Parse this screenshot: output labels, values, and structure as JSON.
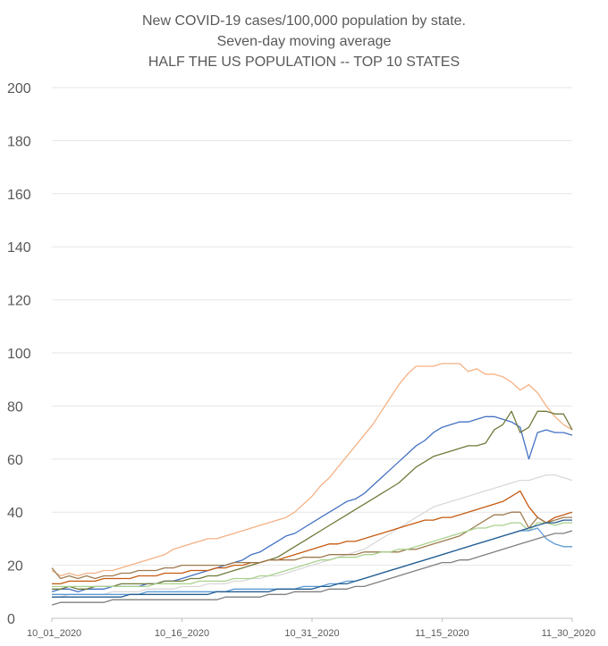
{
  "chart_data": {
    "type": "line",
    "title": [
      "New COVID-19 cases/100,000 population by state.",
      "Seven-day moving average",
      "HALF THE US POPULATION -- TOP 10 STATES"
    ],
    "xlabel": "",
    "ylabel": "",
    "ylim": [
      0,
      200
    ],
    "yticks": [
      0,
      20,
      40,
      60,
      80,
      100,
      120,
      140,
      160,
      180,
      200
    ],
    "xticks": [
      "10_01_2020",
      "10_16_2020",
      "10_31_2020",
      "11_15_2020",
      "11_30_2020"
    ],
    "x_start": "10_01_2020",
    "x_end": "11_30_2020",
    "grid": true,
    "legend": "none",
    "series": [
      {
        "color": "#f4b183",
        "values": [
          18,
          16,
          17,
          16,
          17,
          17,
          18,
          18,
          19,
          20,
          21,
          22,
          23,
          24,
          26,
          27,
          28,
          29,
          30,
          30,
          31,
          32,
          33,
          34,
          35,
          36,
          37,
          38,
          40,
          43,
          46,
          50,
          53,
          57,
          61,
          65,
          69,
          73,
          78,
          83,
          88,
          92,
          95,
          95,
          95,
          96,
          96,
          96,
          93,
          94,
          92,
          92,
          91,
          89,
          86,
          88,
          85,
          80,
          76,
          73,
          71
        ]
      },
      {
        "color": "#4472c4",
        "values": [
          10,
          11,
          11,
          10,
          11,
          11,
          11,
          12,
          12,
          12,
          12,
          13,
          13,
          14,
          14,
          15,
          16,
          17,
          18,
          19,
          20,
          21,
          22,
          24,
          25,
          27,
          29,
          31,
          32,
          34,
          36,
          38,
          40,
          42,
          44,
          45,
          47,
          50,
          53,
          56,
          59,
          62,
          65,
          67,
          70,
          72,
          73,
          74,
          74,
          75,
          76,
          76,
          75,
          74,
          72,
          60,
          70,
          71,
          70,
          70,
          69
        ]
      },
      {
        "color": "#70793a",
        "values": [
          11,
          11,
          12,
          11,
          11,
          12,
          12,
          12,
          13,
          13,
          13,
          13,
          13,
          14,
          14,
          14,
          15,
          15,
          16,
          16,
          17,
          18,
          19,
          20,
          21,
          22,
          23,
          25,
          27,
          29,
          31,
          33,
          35,
          37,
          39,
          41,
          43,
          45,
          47,
          49,
          51,
          54,
          57,
          59,
          61,
          62,
          63,
          64,
          65,
          65,
          66,
          71,
          73,
          78,
          70,
          72,
          78,
          78,
          77,
          77,
          71
        ]
      },
      {
        "color": "#d9d9d9",
        "values": [
          8,
          8,
          9,
          9,
          9,
          9,
          9,
          10,
          10,
          10,
          10,
          11,
          11,
          11,
          11,
          12,
          12,
          12,
          13,
          13,
          13,
          14,
          14,
          15,
          15,
          16,
          16,
          17,
          18,
          19,
          20,
          21,
          22,
          23,
          24,
          25,
          26,
          28,
          30,
          32,
          34,
          36,
          38,
          40,
          42,
          43,
          44,
          45,
          46,
          47,
          48,
          49,
          50,
          51,
          52,
          52,
          53,
          54,
          54,
          53,
          52
        ]
      },
      {
        "color": "#c55a11",
        "values": [
          13,
          13,
          14,
          14,
          14,
          14,
          15,
          15,
          15,
          15,
          16,
          16,
          16,
          17,
          17,
          17,
          18,
          18,
          18,
          19,
          19,
          20,
          20,
          21,
          21,
          22,
          22,
          23,
          24,
          25,
          26,
          27,
          28,
          28,
          29,
          29,
          30,
          31,
          32,
          33,
          34,
          35,
          36,
          37,
          37,
          38,
          38,
          39,
          40,
          41,
          42,
          43,
          44,
          46,
          48,
          42,
          38,
          36,
          38,
          39,
          40
        ]
      },
      {
        "color": "#9e7b4f",
        "values": [
          19,
          15,
          16,
          15,
          16,
          15,
          16,
          16,
          17,
          17,
          18,
          18,
          18,
          19,
          19,
          20,
          20,
          20,
          20,
          20,
          20,
          21,
          21,
          21,
          21,
          22,
          22,
          22,
          22,
          23,
          23,
          23,
          24,
          24,
          24,
          24,
          25,
          25,
          25,
          25,
          25,
          26,
          26,
          27,
          28,
          29,
          30,
          31,
          33,
          35,
          37,
          39,
          39,
          40,
          40,
          34,
          38,
          36,
          37,
          38,
          38
        ]
      },
      {
        "color": "#a9d18e",
        "values": [
          12,
          12,
          12,
          12,
          12,
          12,
          12,
          12,
          12,
          12,
          12,
          12,
          13,
          13,
          13,
          13,
          13,
          14,
          14,
          14,
          14,
          15,
          15,
          15,
          16,
          16,
          17,
          18,
          19,
          20,
          21,
          22,
          22,
          23,
          23,
          23,
          24,
          24,
          25,
          25,
          26,
          26,
          27,
          28,
          29,
          30,
          31,
          32,
          33,
          34,
          34,
          35,
          35,
          36,
          36,
          33,
          36,
          36,
          35,
          36,
          36
        ]
      },
      {
        "color": "#5b9bd5",
        "values": [
          9,
          9,
          9,
          9,
          9,
          9,
          9,
          9,
          9,
          9,
          9,
          10,
          10,
          10,
          10,
          10,
          10,
          10,
          10,
          10,
          10,
          11,
          11,
          11,
          11,
          11,
          11,
          11,
          11,
          12,
          12,
          12,
          13,
          13,
          14,
          14,
          15,
          16,
          17,
          18,
          19,
          20,
          21,
          22,
          23,
          24,
          25,
          26,
          27,
          28,
          29,
          30,
          31,
          32,
          33,
          33,
          34,
          30,
          28,
          27,
          27
        ]
      },
      {
        "color": "#7f7f7f",
        "values": [
          5,
          6,
          6,
          6,
          6,
          6,
          6,
          7,
          7,
          7,
          7,
          7,
          7,
          7,
          7,
          7,
          7,
          7,
          7,
          7,
          8,
          8,
          8,
          8,
          8,
          9,
          9,
          9,
          10,
          10,
          10,
          10,
          11,
          11,
          11,
          12,
          12,
          13,
          14,
          15,
          16,
          17,
          18,
          19,
          20,
          21,
          21,
          22,
          22,
          23,
          24,
          25,
          26,
          27,
          28,
          29,
          30,
          31,
          32,
          32,
          33
        ]
      },
      {
        "color": "#255e91",
        "values": [
          8,
          8,
          8,
          8,
          8,
          8,
          8,
          8,
          8,
          9,
          9,
          9,
          9,
          9,
          9,
          9,
          9,
          9,
          9,
          10,
          10,
          10,
          10,
          10,
          10,
          10,
          11,
          11,
          11,
          11,
          11,
          12,
          12,
          13,
          13,
          14,
          15,
          16,
          17,
          18,
          19,
          20,
          21,
          22,
          23,
          24,
          25,
          26,
          27,
          28,
          29,
          30,
          31,
          32,
          33,
          34,
          35,
          36,
          36,
          37,
          37
        ]
      }
    ]
  }
}
